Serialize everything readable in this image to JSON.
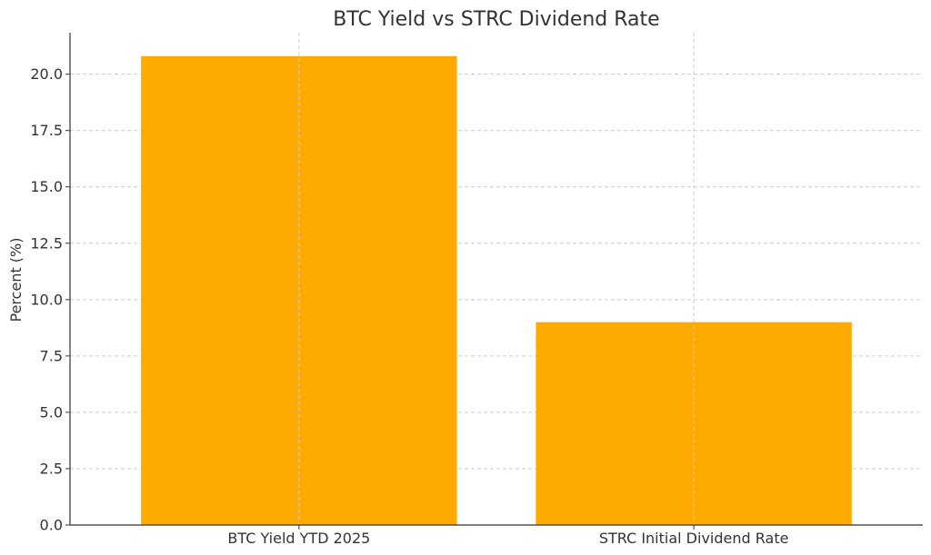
{
  "chart_data": {
    "type": "bar",
    "title": "BTC Yield vs STRC Dividend Rate",
    "xlabel": "",
    "ylabel": "Percent (%)",
    "categories": [
      "BTC Yield YTD 2025",
      "STRC Initial Dividend Rate"
    ],
    "values": [
      20.8,
      9.0
    ],
    "ylim": [
      0,
      21.84
    ],
    "yticks": [
      0.0,
      2.5,
      5.0,
      7.5,
      10.0,
      12.5,
      15.0,
      17.5,
      20.0
    ],
    "ytick_labels": [
      "0.0",
      "2.5",
      "5.0",
      "7.5",
      "10.0",
      "12.5",
      "15.0",
      "17.5",
      "20.0"
    ],
    "grid": true,
    "bar_color": "#FFAA00"
  }
}
